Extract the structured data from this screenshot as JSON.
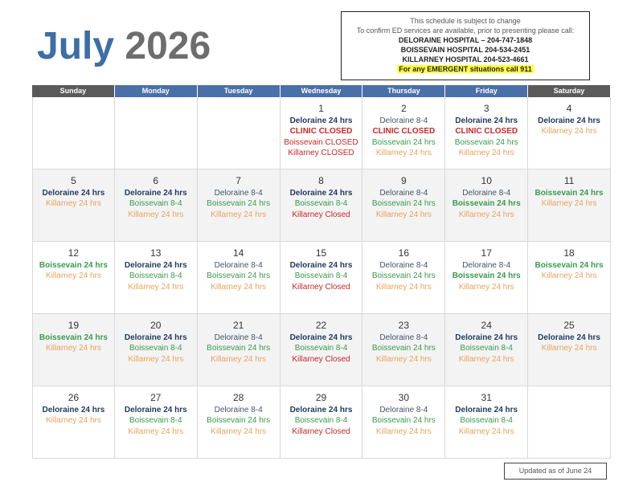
{
  "header": {
    "month": "July",
    "year": "2026",
    "notice": [
      {
        "text": "This schedule is subject to change",
        "style": "plain"
      },
      {
        "text": "To confirm ED services are available, prior to presenting please call:",
        "style": "plain"
      },
      {
        "text": "DELORAINE HOSPITAL – 204-747-1848",
        "style": "bold"
      },
      {
        "text": "BOISSEVAIN HOSPITAL 204-534-2451",
        "style": "bold"
      },
      {
        "text": "KILLARNEY HOSPITAL 204-523-4661",
        "style": "bold"
      },
      {
        "text": "For any EMERGENT situations call 911",
        "style": "highlight"
      }
    ]
  },
  "calendar": {
    "days": [
      {
        "text": "Sunday",
        "color": "#5a5a5a"
      },
      {
        "text": "Monday",
        "color": "#4a70a8"
      },
      {
        "text": "Tuesday",
        "color": "#4a70a8"
      },
      {
        "text": "Wednesday",
        "color": "#4a70a8"
      },
      {
        "text": "Thursday",
        "color": "#4a70a8"
      },
      {
        "text": "Friday",
        "color": "#4a70a8"
      },
      {
        "text": "Saturday",
        "color": "#5a5a5a"
      }
    ],
    "weeks": [
      [
        null,
        null,
        null,
        {
          "day": "1",
          "lines": [
            {
              "text": "Deloraine 24 hrs",
              "color": "#1f3a5f",
              "bold": true
            },
            {
              "text": "CLINIC CLOSED",
              "color": "#c62828",
              "bold": true
            },
            {
              "text": "Boissevain CLOSED",
              "color": "#c62828",
              "bold": false
            },
            {
              "text": "Killarney CLOSED",
              "color": "#c62828",
              "bold": false
            }
          ]
        },
        {
          "day": "2",
          "lines": [
            {
              "text": "Deloraine 8-4",
              "color": "#44546a",
              "bold": false
            },
            {
              "text": "CLINIC CLOSED",
              "color": "#c62828",
              "bold": true
            },
            {
              "text": "Boissevain 24 hrs",
              "color": "#3a9a4f",
              "bold": false
            },
            {
              "text": "Killarney 24 hrs",
              "color": "#e8a25a",
              "bold": false
            }
          ]
        },
        {
          "day": "3",
          "lines": [
            {
              "text": "Deloraine 24 hrs",
              "color": "#1f3a5f",
              "bold": true
            },
            {
              "text": "CLINIC CLOSED",
              "color": "#c62828",
              "bold": true
            },
            {
              "text": "Boissevain 24 hrs",
              "color": "#3a9a4f",
              "bold": false
            },
            {
              "text": "Killarney 24 hrs",
              "color": "#e8a25a",
              "bold": false
            }
          ]
        },
        {
          "day": "4",
          "lines": [
            {
              "text": "Deloraine 24 hrs",
              "color": "#1f3a5f",
              "bold": true
            },
            {
              "text": "Killarney 24 hrs",
              "color": "#e8a25a",
              "bold": false
            }
          ]
        }
      ],
      [
        {
          "day": "5",
          "lines": [
            {
              "text": "Deloraine 24 hrs",
              "color": "#1f3a5f",
              "bold": true
            },
            {
              "text": "Killarney 24 hrs",
              "color": "#e8a25a",
              "bold": false
            }
          ]
        },
        {
          "day": "6",
          "lines": [
            {
              "text": "Deloraine 24 hrs",
              "color": "#1f3a5f",
              "bold": true
            },
            {
              "text": "Boissevain 8-4",
              "color": "#3a9a4f",
              "bold": false
            },
            {
              "text": "Killarney 24 hrs",
              "color": "#e8a25a",
              "bold": false
            }
          ]
        },
        {
          "day": "7",
          "lines": [
            {
              "text": "Deloraine 8-4",
              "color": "#44546a",
              "bold": false
            },
            {
              "text": "Boissevain 24 hrs",
              "color": "#3a9a4f",
              "bold": false
            },
            {
              "text": "Killarney 24 hrs",
              "color": "#e8a25a",
              "bold": false
            }
          ]
        },
        {
          "day": "8",
          "lines": [
            {
              "text": "Deloraine 24 hrs",
              "color": "#1f3a5f",
              "bold": true
            },
            {
              "text": "Boissevain 8-4",
              "color": "#3a9a4f",
              "bold": false
            },
            {
              "text": "Killarney Closed",
              "color": "#c62828",
              "bold": false
            }
          ]
        },
        {
          "day": "9",
          "lines": [
            {
              "text": "Deloraine 8-4",
              "color": "#44546a",
              "bold": false
            },
            {
              "text": "Boissevain 24 hrs",
              "color": "#3a9a4f",
              "bold": false
            },
            {
              "text": "Killarney 24 hrs",
              "color": "#e8a25a",
              "bold": false
            }
          ]
        },
        {
          "day": "10",
          "lines": [
            {
              "text": "Deloraine 8-4",
              "color": "#44546a",
              "bold": false
            },
            {
              "text": "Boissevain 24 hrs",
              "color": "#3a9a4f",
              "bold": true
            },
            {
              "text": "Killarney 24 hrs",
              "color": "#e8a25a",
              "bold": false
            }
          ]
        },
        {
          "day": "11",
          "lines": [
            {
              "text": "Boissevain 24 hrs",
              "color": "#3a9a4f",
              "bold": true
            },
            {
              "text": "Killarney 24 hrs",
              "color": "#e8a25a",
              "bold": false
            }
          ]
        }
      ],
      [
        {
          "day": "12",
          "lines": [
            {
              "text": "Boissevain 24 hrs",
              "color": "#3a9a4f",
              "bold": true
            },
            {
              "text": "Killarney 24 hrs",
              "color": "#e8a25a",
              "bold": false
            }
          ]
        },
        {
          "day": "13",
          "lines": [
            {
              "text": "Deloraine 24 hrs",
              "color": "#1f3a5f",
              "bold": true
            },
            {
              "text": "Boissevain 8-4",
              "color": "#3a9a4f",
              "bold": false
            },
            {
              "text": "Killarney 24 hrs",
              "color": "#e8a25a",
              "bold": false
            }
          ]
        },
        {
          "day": "14",
          "lines": [
            {
              "text": "Deloraine 8-4",
              "color": "#44546a",
              "bold": false
            },
            {
              "text": "Boissevain 24 hrs",
              "color": "#3a9a4f",
              "bold": false
            },
            {
              "text": "Killarney 24 hrs",
              "color": "#e8a25a",
              "bold": false
            }
          ]
        },
        {
          "day": "15",
          "lines": [
            {
              "text": "Deloraine 24 hrs",
              "color": "#1f3a5f",
              "bold": true
            },
            {
              "text": "Boissevain 8-4",
              "color": "#3a9a4f",
              "bold": false
            },
            {
              "text": "Killarney Closed",
              "color": "#c62828",
              "bold": false
            }
          ]
        },
        {
          "day": "16",
          "lines": [
            {
              "text": "Deloraine 8-4",
              "color": "#44546a",
              "bold": false
            },
            {
              "text": "Boissevain 24 hrs",
              "color": "#3a9a4f",
              "bold": false
            },
            {
              "text": "Killarney 24 hrs",
              "color": "#e8a25a",
              "bold": false
            }
          ]
        },
        {
          "day": "17",
          "lines": [
            {
              "text": "Deloraine 8-4",
              "color": "#44546a",
              "bold": false
            },
            {
              "text": "Boissevain 24 hrs",
              "color": "#3a9a4f",
              "bold": true
            },
            {
              "text": "Killarney 24 hrs",
              "color": "#e8a25a",
              "bold": false
            }
          ]
        },
        {
          "day": "18",
          "lines": [
            {
              "text": "Boissevain 24 hrs",
              "color": "#3a9a4f",
              "bold": true
            },
            {
              "text": "Killarney 24 hrs",
              "color": "#e8a25a",
              "bold": false
            }
          ]
        }
      ],
      [
        {
          "day": "19",
          "lines": [
            {
              "text": "Boissevain 24 hrs",
              "color": "#3a9a4f",
              "bold": true
            },
            {
              "text": "Killarney 24 hrs",
              "color": "#e8a25a",
              "bold": false
            }
          ]
        },
        {
          "day": "20",
          "lines": [
            {
              "text": "Deloraine 24 hrs",
              "color": "#1f3a5f",
              "bold": true
            },
            {
              "text": "Boissevain 8-4",
              "color": "#3a9a4f",
              "bold": false
            },
            {
              "text": "Killarney 24 hrs",
              "color": "#e8a25a",
              "bold": false
            }
          ]
        },
        {
          "day": "21",
          "lines": [
            {
              "text": "Deloraine 8-4",
              "color": "#44546a",
              "bold": false
            },
            {
              "text": "Boissevain 24 hrs",
              "color": "#3a9a4f",
              "bold": false
            },
            {
              "text": "Killarney 24 hrs",
              "color": "#e8a25a",
              "bold": false
            }
          ]
        },
        {
          "day": "22",
          "lines": [
            {
              "text": "Deloraine 24 hrs",
              "color": "#1f3a5f",
              "bold": true
            },
            {
              "text": "Boissevain 8-4",
              "color": "#3a9a4f",
              "bold": false
            },
            {
              "text": "Killarney Closed",
              "color": "#c62828",
              "bold": false
            }
          ]
        },
        {
          "day": "23",
          "lines": [
            {
              "text": "Deloraine 8-4",
              "color": "#44546a",
              "bold": false
            },
            {
              "text": "Boissevain 24 hrs",
              "color": "#3a9a4f",
              "bold": false
            },
            {
              "text": "Killarney 24 hrs",
              "color": "#e8a25a",
              "bold": false
            }
          ]
        },
        {
          "day": "24",
          "lines": [
            {
              "text": "Deloraine 24 hrs",
              "color": "#1f3a5f",
              "bold": true
            },
            {
              "text": "Boissevain 8-4",
              "color": "#3a9a4f",
              "bold": false
            },
            {
              "text": "Killarney 24 hrs",
              "color": "#e8a25a",
              "bold": false
            }
          ]
        },
        {
          "day": "25",
          "lines": [
            {
              "text": "Deloraine 24 hrs",
              "color": "#1f3a5f",
              "bold": true
            },
            {
              "text": "Killarney 24 hrs",
              "color": "#e8a25a",
              "bold": false
            }
          ]
        }
      ],
      [
        {
          "day": "26",
          "lines": [
            {
              "text": "Deloraine 24 hrs",
              "color": "#1f3a5f",
              "bold": true
            },
            {
              "text": "Killarney 24 hrs",
              "color": "#e8a25a",
              "bold": false
            }
          ]
        },
        {
          "day": "27",
          "lines": [
            {
              "text": "Deloraine 24 hrs",
              "color": "#1f3a5f",
              "bold": true
            },
            {
              "text": "Boissevain 8-4",
              "color": "#3a9a4f",
              "bold": false
            },
            {
              "text": "Killarney 24 hrs",
              "color": "#e8a25a",
              "bold": false
            }
          ]
        },
        {
          "day": "28",
          "lines": [
            {
              "text": "Deloraine 8-4",
              "color": "#44546a",
              "bold": false
            },
            {
              "text": "Boissevain 24 hrs",
              "color": "#3a9a4f",
              "bold": false
            },
            {
              "text": "Killarney 24 hrs",
              "color": "#e8a25a",
              "bold": false
            }
          ]
        },
        {
          "day": "29",
          "lines": [
            {
              "text": "Deloraine 24 hrs",
              "color": "#1f3a5f",
              "bold": true
            },
            {
              "text": "Boissevain 8-4",
              "color": "#3a9a4f",
              "bold": false
            },
            {
              "text": "Killarney Closed",
              "color": "#c62828",
              "bold": false
            }
          ]
        },
        {
          "day": "30",
          "lines": [
            {
              "text": "Deloraine 8-4",
              "color": "#44546a",
              "bold": false
            },
            {
              "text": "Boissevain 24 hrs",
              "color": "#3a9a4f",
              "bold": false
            },
            {
              "text": "Killarney 24 hrs",
              "color": "#e8a25a",
              "bold": false
            }
          ]
        },
        {
          "day": "31",
          "lines": [
            {
              "text": "Deloraine 24 hrs",
              "color": "#1f3a5f",
              "bold": true
            },
            {
              "text": "Boissevain 8-4",
              "color": "#3a9a4f",
              "bold": false
            },
            {
              "text": "Killarney 24 hrs",
              "color": "#e8a25a",
              "bold": false
            }
          ]
        },
        null
      ]
    ]
  },
  "footer": {
    "text": "Updated as of June 24"
  }
}
